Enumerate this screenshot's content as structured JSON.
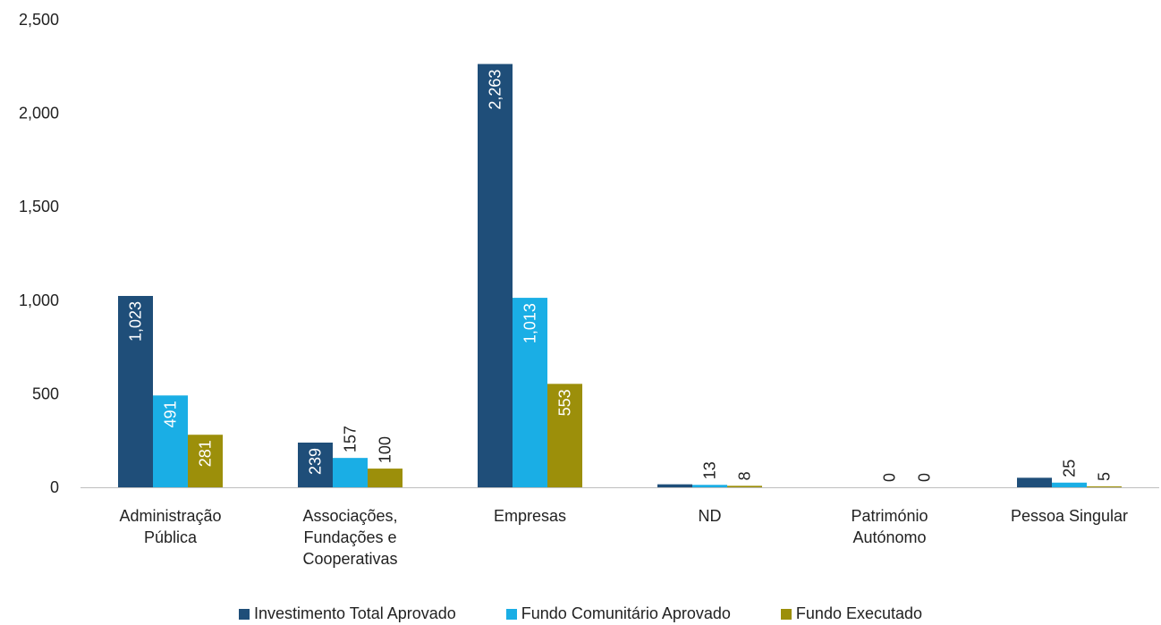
{
  "chart_data": {
    "type": "bar",
    "categories": [
      [
        "Administração",
        "Pública"
      ],
      [
        "Associações,",
        "Fundações e",
        "Cooperativas"
      ],
      [
        "Empresas"
      ],
      [
        "ND"
      ],
      [
        "Património",
        "Autónomo"
      ],
      [
        "Pessoa Singular"
      ]
    ],
    "series": [
      {
        "name": "Investimento Total Aprovado",
        "color": "#1f4e79",
        "values": [
          1023,
          239,
          2263,
          16,
          0,
          51
        ],
        "labels": [
          "1,023",
          "239",
          "2,263",
          "",
          "",
          ""
        ],
        "label_colors": [
          "#ffffff",
          "#ffffff",
          "#ffffff",
          "#222222",
          "#222222",
          "#222222"
        ]
      },
      {
        "name": "Fundo Comunitário Aprovado",
        "color": "#1aaee5",
        "values": [
          491,
          157,
          1013,
          13,
          0,
          25
        ],
        "labels": [
          "491",
          "157",
          "1,013",
          "13",
          "0",
          "25"
        ],
        "label_colors": [
          "#ffffff",
          "#222222",
          "#ffffff",
          "#222222",
          "#222222",
          "#222222"
        ]
      },
      {
        "name": "Fundo Executado",
        "color": "#9c8f0a",
        "values": [
          281,
          100,
          553,
          8,
          0,
          5
        ],
        "labels": [
          "281",
          "100",
          "553",
          "8",
          "0",
          "5"
        ],
        "label_colors": [
          "#ffffff",
          "#222222",
          "#ffffff",
          "#222222",
          "#222222",
          "#222222"
        ]
      }
    ],
    "y_ticks": [
      "0",
      "500",
      "1,000",
      "1,500",
      "2,000",
      "2,500"
    ],
    "ylim": [
      0,
      2500
    ],
    "grid": false,
    "legend": "bottom",
    "title": "",
    "xlabel": "",
    "ylabel": ""
  }
}
